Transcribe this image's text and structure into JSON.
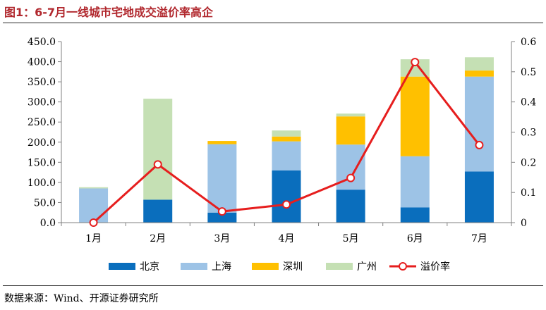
{
  "figure": {
    "title": "图1：6-7月一线城市宅地成交溢价率高企",
    "source": "数据来源：Wind、开源证券研究所"
  },
  "chart_data": {
    "type": "bar",
    "title": "图1：6-7月一线城市宅地成交溢价率高企",
    "categories": [
      "1月",
      "2月",
      "3月",
      "4月",
      "5月",
      "6月",
      "7月"
    ],
    "stacked": true,
    "y_left": {
      "min": 0,
      "max": 450,
      "step": 50,
      "ticks": [
        "0.0",
        "50.0",
        "100.0",
        "150.0",
        "200.0",
        "250.0",
        "300.0",
        "350.0",
        "400.0",
        "450.0"
      ]
    },
    "y_right": {
      "min": 0,
      "max": 0.6,
      "step": 0.1,
      "ticks": [
        "0",
        "0.1",
        "0.2",
        "0.3",
        "0.4",
        "0.5",
        "0.6"
      ]
    },
    "series": [
      {
        "name": "北京",
        "kind": "bar",
        "axis": "left",
        "color": "#0a6ebd",
        "values": [
          0,
          57,
          25,
          130,
          82,
          38,
          127
        ]
      },
      {
        "name": "上海",
        "kind": "bar",
        "axis": "left",
        "color": "#9dc3e6",
        "values": [
          85,
          0,
          170,
          72,
          112,
          127,
          236
        ]
      },
      {
        "name": "深圳",
        "kind": "bar",
        "axis": "left",
        "color": "#ffc000",
        "values": [
          0,
          0,
          8,
          12,
          70,
          198,
          15
        ]
      },
      {
        "name": "广州",
        "kind": "bar",
        "axis": "left",
        "color": "#c5e0b4",
        "values": [
          3,
          251,
          0,
          15,
          7,
          43,
          33
        ]
      },
      {
        "name": "溢价率",
        "kind": "line",
        "axis": "right",
        "color": "#e61e1e",
        "values": [
          0.0,
          0.193,
          0.037,
          0.06,
          0.148,
          0.532,
          0.257
        ]
      }
    ],
    "legend_position": "bottom",
    "grid": false
  }
}
